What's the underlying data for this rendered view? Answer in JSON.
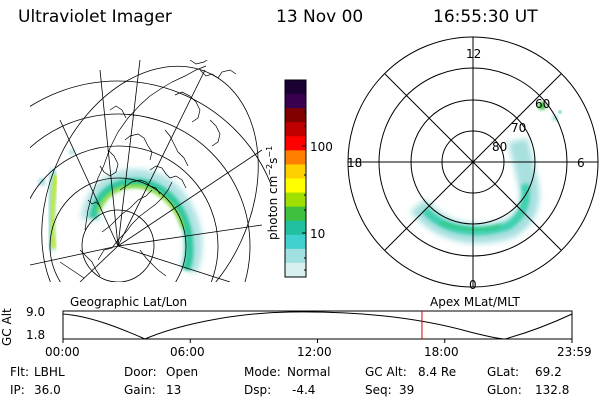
{
  "header": {
    "instrument": "Ultraviolet Imager",
    "date": "13 Nov 00",
    "time": "16:55:30 UT"
  },
  "colorbar": {
    "unit_label": "photon cm",
    "unit_exp1": "−2",
    "unit_mid": "s",
    "unit_exp2": "−1",
    "tick_100": "100",
    "tick_10": "10",
    "colors": [
      "#1a0033",
      "#3a0050",
      "#800000",
      "#c00000",
      "#ff0000",
      "#ff8000",
      "#ffd000",
      "#ffff00",
      "#a0e000",
      "#40c040",
      "#20c0a0",
      "#40d0d0",
      "#a0e0e0",
      "#d8f0f0"
    ]
  },
  "geo_panel": {
    "label": "Geographic Lat/Lon"
  },
  "polar_panel": {
    "label": "Apex MLat/MLT",
    "mlt_12": "12",
    "mlt_18": "18",
    "mlt_6": "6",
    "mlt_0": "0",
    "lat_60": "60",
    "lat_70": "70",
    "lat_80": "80"
  },
  "altitude_plot": {
    "ylabel": "GC Alt",
    "y_top": "9.0",
    "y_bottom": "1.8",
    "x_ticks": [
      "00:00",
      "06:00",
      "12:00",
      "18:00",
      "23:59"
    ],
    "current_marker_hours": 16.925,
    "marker_color": "#e00000"
  },
  "status": {
    "flt_label": "Flt:",
    "flt_value": "LBHL",
    "ip_label": "IP:",
    "ip_value": "36.0",
    "door_label": "Door:",
    "door_value": "Open",
    "gain_label": "Gain:",
    "gain_value": "13",
    "mode_label": "Mode:",
    "mode_value": "Normal",
    "dsp_label": "Dsp:",
    "dsp_value": "-4.4",
    "gcalt_label": "GC Alt:",
    "gcalt_value": "8.4 Re",
    "seq_label": "Seq:",
    "seq_value": "39",
    "glat_label": "GLat:",
    "glat_value": "69.2",
    "glon_label": "GLon:",
    "glon_value": "132.8"
  }
}
